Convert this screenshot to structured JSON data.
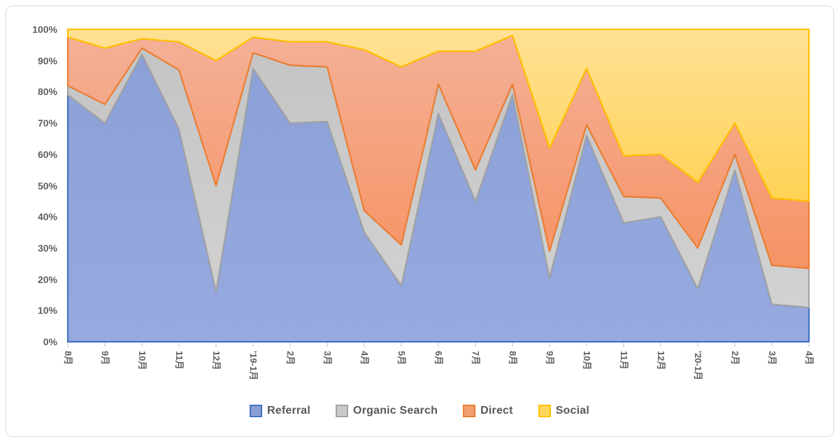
{
  "chart_data": {
    "type": "area",
    "stacking": "percent",
    "categories": [
      "8月",
      "9月",
      "10月",
      "11月",
      "12月",
      "'19-1月",
      "2月",
      "3月",
      "4月",
      "5月",
      "6月",
      "7月",
      "8月",
      "9月",
      "10月",
      "11月",
      "12月",
      "'20-1月",
      "2月",
      "3月",
      "4月"
    ],
    "y_ticks": [
      "0%",
      "10%",
      "20%",
      "30%",
      "40%",
      "50%",
      "60%",
      "70%",
      "80%",
      "90%",
      "100%"
    ],
    "ylim": [
      0,
      100
    ],
    "gridlines": false,
    "legend_position": "bottom",
    "series": [
      {
        "name": "Referral",
        "values": [
          79,
          70,
          92,
          68,
          16,
          87.5,
          70,
          70.5,
          35,
          18,
          73,
          45,
          79,
          20.5,
          66,
          38,
          40,
          17,
          55,
          12,
          11
        ],
        "stroke": "#4472c4",
        "fill_top": "#8ba0d6",
        "fill_bottom": "#96aae0",
        "legend_fill": "#8ba0d6"
      },
      {
        "name": "Organic Search",
        "values": [
          3,
          6,
          2,
          19,
          34,
          5,
          18.5,
          17.5,
          7,
          13,
          9.5,
          10,
          3.5,
          8.5,
          3.5,
          8.5,
          6,
          13,
          5,
          12.5,
          12.5
        ],
        "stroke": "#a3a3a3",
        "fill_top": "#c4c4c4",
        "fill_bottom": "#d2d2d2",
        "legend_fill": "#c9c9c9"
      },
      {
        "name": "Direct",
        "values": [
          15.5,
          18,
          3,
          9,
          40,
          5,
          7.5,
          8,
          51.5,
          57,
          10.5,
          38,
          15.5,
          33,
          18,
          13,
          14,
          21,
          10,
          21.5,
          21.5
        ],
        "stroke": "#ed7d31",
        "fill_top": "#f4b096",
        "fill_bottom": "#f69365",
        "legend_fill": "#f0a070"
      },
      {
        "name": "Social",
        "values": [
          2.5,
          6,
          3,
          4,
          10,
          2.5,
          4,
          4,
          6.5,
          12,
          7,
          7,
          2,
          38,
          12.5,
          40.5,
          40,
          49,
          30,
          54,
          55
        ],
        "stroke": "#ffc000",
        "fill_top": "#ffe195",
        "fill_bottom": "#ffd255",
        "legend_fill": "#ffd75e"
      }
    ],
    "axis": {
      "line_color": "#c9cfdc",
      "label_color": "#5f5f5f"
    }
  }
}
